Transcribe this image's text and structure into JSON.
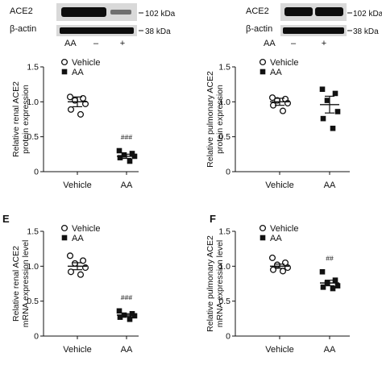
{
  "colors": {
    "ink": "#111111",
    "blot_background": "#d9d9d9",
    "blot_band": "#0d0d0d",
    "blot_band_faint": "#6f6f6f",
    "marker_fill_ko": "#111111",
    "marker_fill_vehicle": "#ffffff"
  },
  "blots": [
    {
      "ace2_label": "ACE2",
      "actin_label": "β-actin",
      "aa_label": "AA",
      "lane_minus": "–",
      "lane_plus": "+",
      "size_ace2": "102 kDa",
      "size_actin": "38 kDa"
    },
    {
      "ace2_label": "ACE2",
      "actin_label": "β-actin",
      "aa_label": "AA",
      "lane_minus": "–",
      "lane_plus": "+",
      "size_ace2": "102 kDa",
      "size_actin": "38 kDa"
    }
  ],
  "chart_data": [
    {
      "type": "scatter",
      "panel_letter": "",
      "ylabel": [
        "Relative renal ACE2",
        "protein expression"
      ],
      "categories": [
        "Vehicle",
        "AA"
      ],
      "ylim": [
        0,
        1.5
      ],
      "yticks": [
        "0",
        "0.5",
        "1.0",
        "1.5"
      ],
      "ytick_values": [
        0,
        0.5,
        1.0,
        1.5
      ],
      "legend": [
        "Vehicle",
        "AA"
      ],
      "groups": [
        {
          "name": "Vehicle",
          "marker": "open-circle",
          "mean": 1.0,
          "sem": 0.07,
          "points": [
            1.07,
            1.05,
            1.02,
            0.97,
            0.89,
            0.82
          ]
        },
        {
          "name": "AA",
          "marker": "filled-square",
          "mean": 0.22,
          "sem": 0.03,
          "points": [
            0.3,
            0.26,
            0.24,
            0.22,
            0.2,
            0.15
          ],
          "significance": "###"
        }
      ]
    },
    {
      "type": "scatter",
      "panel_letter": "",
      "ylabel": [
        "Relative pulmonary ACE2",
        "protein expression"
      ],
      "categories": [
        "Vehicle",
        "AA"
      ],
      "ylim": [
        0,
        1.5
      ],
      "yticks": [
        "0",
        "0.5",
        "1.0",
        "1.5"
      ],
      "ytick_values": [
        0,
        0.5,
        1.0,
        1.5
      ],
      "legend": [
        "Vehicle",
        "AA"
      ],
      "groups": [
        {
          "name": "Vehicle",
          "marker": "open-circle",
          "mean": 1.0,
          "sem": 0.05,
          "points": [
            1.06,
            1.04,
            1.02,
            0.98,
            0.95,
            0.87
          ]
        },
        {
          "name": "AA",
          "marker": "filled-square",
          "mean": 0.96,
          "sem": 0.12,
          "points": [
            1.18,
            1.12,
            1.02,
            0.86,
            0.76,
            0.62
          ]
        }
      ]
    },
    {
      "type": "scatter",
      "panel_letter": "E",
      "ylabel": [
        "Relative renal ACE2",
        "mRNA expression level"
      ],
      "categories": [
        "Vehicle",
        "AA"
      ],
      "ylim": [
        0,
        1.5
      ],
      "yticks": [
        "0",
        "0.5",
        "1.0",
        "1.5"
      ],
      "ytick_values": [
        0,
        0.5,
        1.0,
        1.5
      ],
      "legend": [
        "Vehicle",
        "AA"
      ],
      "groups": [
        {
          "name": "Vehicle",
          "marker": "open-circle",
          "mean": 1.0,
          "sem": 0.05,
          "points": [
            1.15,
            1.08,
            1.04,
            0.98,
            0.92,
            0.88
          ]
        },
        {
          "name": "AA",
          "marker": "filled-square",
          "mean": 0.3,
          "sem": 0.02,
          "points": [
            0.36,
            0.32,
            0.3,
            0.29,
            0.27,
            0.24
          ],
          "significance": "###"
        }
      ]
    },
    {
      "type": "scatter",
      "panel_letter": "F",
      "ylabel": [
        "Relative pulmonary ACE2",
        "mRNA expression level"
      ],
      "categories": [
        "Vehicle",
        "AA"
      ],
      "ylim": [
        0,
        1.5
      ],
      "yticks": [
        "0",
        "0.5",
        "1.0",
        "1.5"
      ],
      "ytick_values": [
        0,
        0.5,
        1.0,
        1.5
      ],
      "legend": [
        "Vehicle",
        "AA"
      ],
      "groups": [
        {
          "name": "Vehicle",
          "marker": "open-circle",
          "mean": 1.0,
          "sem": 0.03,
          "points": [
            1.12,
            1.05,
            1.02,
            0.98,
            0.95,
            0.93
          ]
        },
        {
          "name": "AA",
          "marker": "filled-square",
          "mean": 0.76,
          "sem": 0.04,
          "points": [
            0.92,
            0.8,
            0.76,
            0.72,
            0.7,
            0.68
          ],
          "significance": "##"
        }
      ]
    }
  ]
}
